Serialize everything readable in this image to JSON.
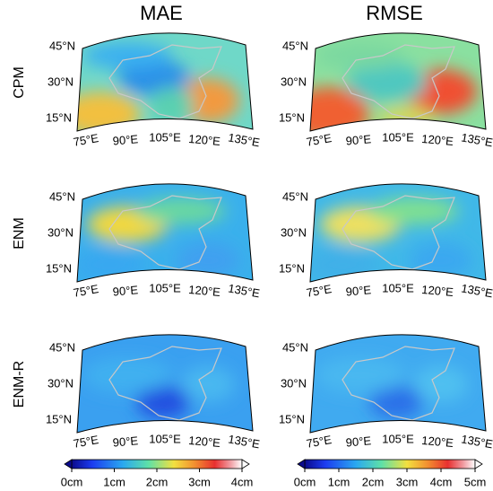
{
  "columns": [
    "MAE",
    "RMSE"
  ],
  "rows": [
    "CPM",
    "ENM",
    "ENM-R"
  ],
  "lat_labels": [
    "45°N",
    "30°N",
    "15°N"
  ],
  "lon_labels": [
    "75°E",
    "90°E",
    "105°E",
    "120°E",
    "135°E"
  ],
  "colorbars": [
    {
      "labels": [
        "0cm",
        "1cm",
        "2cm",
        "3cm",
        "4cm"
      ]
    },
    {
      "labels": [
        "0cm",
        "1cm",
        "2cm",
        "3cm",
        "4cm",
        "5cm"
      ]
    }
  ]
}
